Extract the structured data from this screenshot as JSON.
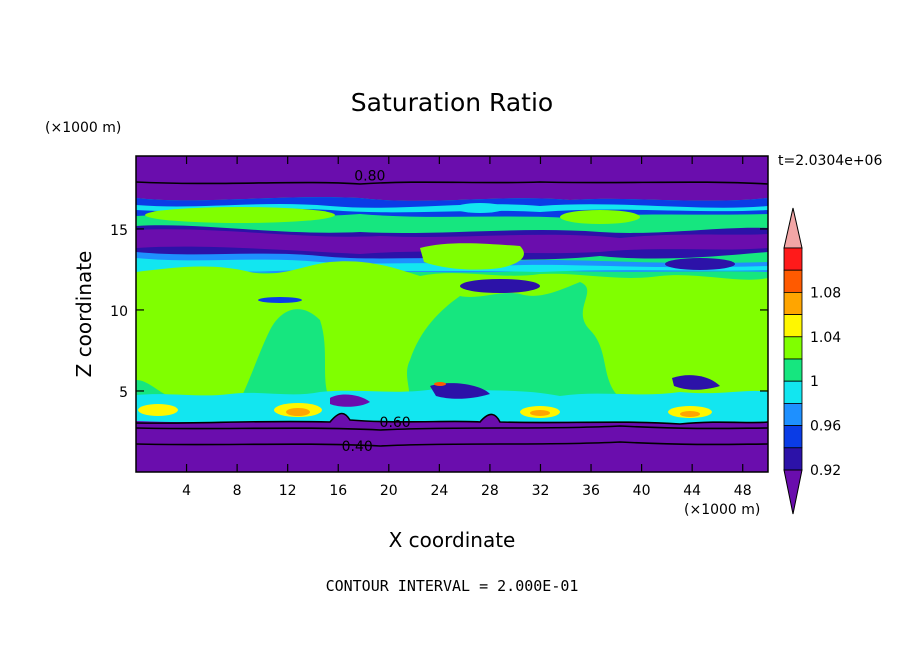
{
  "chart_data": {
    "type": "heatmap",
    "title": "Saturation Ratio",
    "xlabel": "X coordinate",
    "ylabel": "Z coordinate",
    "x_unit": "(×1000 m)",
    "y_unit": "(×1000 m)",
    "time_label": "t=2.0304e+06",
    "footer": "CONTOUR INTERVAL = 2.000E-01",
    "xlim": [
      0,
      50
    ],
    "ylim": [
      0,
      19.5
    ],
    "x_ticks": [
      4,
      8,
      12,
      16,
      20,
      24,
      28,
      32,
      36,
      40,
      44,
      48
    ],
    "y_ticks": [
      5,
      10,
      15
    ],
    "colorbar": {
      "levels": [
        0.92,
        0.94,
        0.96,
        0.98,
        1.0,
        1.02,
        1.04,
        1.06,
        1.08,
        1.1
      ],
      "tick_labels": [
        "0.92",
        "0.96",
        "1",
        "1.04",
        "1.08"
      ],
      "colors": [
        "#6a0dad",
        "#2c12a8",
        "#0a3ce6",
        "#1e90ff",
        "#12e6f0",
        "#16e67f",
        "#80ff00",
        "#fff700",
        "#ffa500",
        "#ff5a00",
        "#ff1a1a",
        "#f2a6a6"
      ]
    },
    "contour_labels": [
      {
        "text": "0.80",
        "x": 18.5,
        "z": 18.3
      },
      {
        "text": "0.60",
        "x": 20.5,
        "z": 3.1
      },
      {
        "text": "0.40",
        "x": 17.5,
        "z": 1.6
      }
    ]
  }
}
